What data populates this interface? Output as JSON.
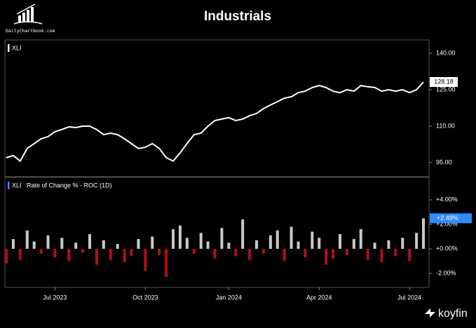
{
  "title": "Industrials",
  "brand": "DailyChartbook.com",
  "footer": "koyfin",
  "chart_data": [
    {
      "type": "line",
      "series": [
        {
          "name": "XLI",
          "color": "#ffffff",
          "values": [
            97.0,
            97.9,
            95.6,
            100.8,
            102.8,
            104.8,
            105.7,
            107.7,
            108.6,
            109.7,
            109.4,
            110.0,
            110.0,
            108.6,
            106.5,
            107.1,
            106.5,
            104.8,
            102.8,
            100.8,
            101.3,
            102.8,
            100.8,
            97.0,
            95.6,
            99.0,
            102.8,
            106.5,
            107.1,
            110.0,
            112.3,
            112.9,
            113.5,
            112.3,
            112.9,
            114.3,
            115.2,
            117.2,
            118.7,
            120.1,
            121.5,
            122.1,
            123.8,
            124.4,
            125.9,
            126.7,
            125.9,
            124.4,
            123.8,
            125.0,
            124.4,
            126.7,
            126.2,
            125.9,
            124.4,
            125.0,
            124.4,
            125.0,
            123.8,
            125.0,
            128.18
          ]
        }
      ],
      "ylim": [
        89.2,
        145.5
      ],
      "yticks": [
        {
          "value": 95,
          "label": "95.00"
        },
        {
          "value": 110,
          "label": "110.00"
        },
        {
          "value": 125,
          "label": "125.00"
        },
        {
          "value": 140,
          "label": "140.00"
        }
      ]
    },
    {
      "type": "bar",
      "series": [
        {
          "name": "XLI",
          "color": "#2f8cff",
          "values": [
            -1.2,
            0.8,
            -0.9,
            1.5,
            0.6,
            -0.4,
            1.1,
            -0.7,
            0.9,
            -1.0,
            0.5,
            -0.3,
            1.2,
            -1.3,
            0.7,
            -0.9,
            0.4,
            -1.1,
            -0.6,
            0.8,
            -1.8,
            1.0,
            -0.5,
            -2.3,
            1.6,
            1.9,
            0.9,
            -0.4,
            1.3,
            0.6,
            -0.8,
            1.7,
            0.5,
            -0.6,
            2.4,
            -0.9,
            0.7,
            -0.4,
            1.1,
            1.5,
            -1.0,
            1.8,
            0.6,
            -0.7,
            1.4,
            0.9,
            -1.3,
            -0.8,
            1.2,
            -0.5,
            0.8,
            1.6,
            -0.9,
            0.5,
            -1.1,
            0.7,
            -0.6,
            0.9,
            -1.0,
            1.3,
            2.49
          ],
          "value_labels": [
            null,
            null,
            null,
            null,
            null,
            null,
            null,
            null,
            null,
            null,
            null,
            null,
            null,
            null,
            null,
            null,
            null,
            null,
            null,
            null,
            null,
            null,
            null,
            null,
            null,
            null,
            null,
            null,
            null,
            null,
            null,
            null,
            null,
            null,
            null,
            null,
            null,
            null,
            null,
            null,
            null,
            null,
            null,
            null,
            null,
            null,
            null,
            null,
            null,
            null,
            null,
            null,
            null,
            null,
            null,
            null,
            null,
            null,
            null,
            null,
            "+2.49%"
          ]
        }
      ],
      "indicator": "Rate of Change % - ROC (1D)",
      "positive_color": "#c8c8c8",
      "negative_color": "#b01010",
      "categories": [
        null,
        null,
        null,
        null,
        null,
        null,
        null,
        "Jul 2023",
        null,
        null,
        null,
        null,
        null,
        null,
        null,
        null,
        null,
        null,
        null,
        null,
        "Oct 2023",
        null,
        null,
        null,
        null,
        null,
        null,
        null,
        null,
        null,
        null,
        null,
        "Jan 2024",
        null,
        null,
        null,
        null,
        null,
        null,
        null,
        null,
        null,
        null,
        null,
        null,
        "Apr 2024",
        null,
        null,
        null,
        null,
        null,
        null,
        null,
        null,
        null,
        null,
        null,
        null,
        "Jul 2024",
        null,
        null
      ],
      "ylim": [
        -3.14,
        5.83
      ],
      "yticks": [
        {
          "value": -2,
          "label": "-2.00%"
        },
        {
          "value": 0,
          "label": "+0.00%"
        },
        {
          "value": 2,
          "label": "+2.00%"
        },
        {
          "value": 4,
          "label": "+4.00%"
        }
      ]
    }
  ]
}
